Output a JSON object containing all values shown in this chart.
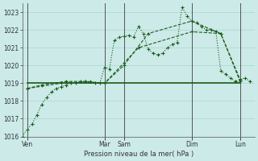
{
  "bg_color": "#cceae8",
  "grid_color": "#aad4d0",
  "line_color": "#1a5c1a",
  "xlabel": "Pression niveau de la mer( hPa )",
  "ylim": [
    1016,
    1023.5
  ],
  "yticks": [
    1016,
    1017,
    1018,
    1019,
    1020,
    1021,
    1022,
    1023
  ],
  "xlim": [
    0,
    24
  ],
  "day_labels": [
    "Ven",
    "Mar",
    "Sam",
    "Dim",
    "Lun"
  ],
  "day_tick_pos": [
    0.5,
    8.5,
    10.5,
    17.5,
    22.5
  ],
  "day_vline_pos": [
    0.5,
    8.5,
    10.5,
    17.5,
    22.5
  ],
  "series1_x": [
    0.0,
    0.5,
    1.0,
    1.5,
    2.0,
    2.5,
    3.0,
    3.5,
    4.0,
    4.5,
    5.0,
    5.5,
    6.0,
    6.5,
    7.0,
    7.5,
    8.0,
    8.5,
    9.0,
    9.5,
    10.0,
    10.5,
    11.0,
    11.5,
    12.0,
    12.5,
    13.0,
    13.5,
    14.0,
    14.5,
    15.0,
    15.5,
    16.0,
    16.5,
    17.0,
    17.5,
    18.0,
    18.5,
    19.0,
    19.5,
    20.0,
    20.5,
    21.0,
    21.5,
    22.0,
    22.5,
    23.0,
    23.5
  ],
  "series1_y": [
    1016.0,
    1016.4,
    1016.7,
    1017.2,
    1017.8,
    1018.2,
    1018.5,
    1018.7,
    1018.8,
    1018.9,
    1019.0,
    1019.0,
    1019.1,
    1019.1,
    1019.1,
    1019.0,
    1019.0,
    1019.9,
    1019.8,
    1021.4,
    1021.6,
    1021.65,
    1021.7,
    1021.6,
    1022.2,
    1021.8,
    1020.9,
    1020.7,
    1020.6,
    1020.7,
    1021.0,
    1021.2,
    1021.3,
    1023.3,
    1022.8,
    1022.5,
    1022.4,
    1022.2,
    1022.0,
    1022.0,
    1021.9,
    1019.7,
    1019.5,
    1019.3,
    1019.1,
    1019.2,
    1019.3,
    1019.1
  ],
  "series2_x": [
    0.5,
    2.0,
    4.5,
    6.5,
    8.5,
    10.5,
    13.0,
    17.5,
    20.5,
    22.5
  ],
  "series2_y": [
    1018.7,
    1018.9,
    1019.1,
    1019.1,
    1019.0,
    1020.0,
    1021.8,
    1022.5,
    1021.8,
    1019.1
  ],
  "series3_x": [
    0.5,
    4.0,
    8.5,
    12.0,
    17.5,
    20.5,
    22.5
  ],
  "series3_y": [
    1018.7,
    1019.0,
    1019.0,
    1021.0,
    1021.9,
    1021.8,
    1019.2
  ],
  "series4_x": [
    0.5,
    8.5,
    17.5,
    22.5
  ],
  "series4_y": [
    1019.0,
    1019.0,
    1019.0,
    1019.0
  ]
}
